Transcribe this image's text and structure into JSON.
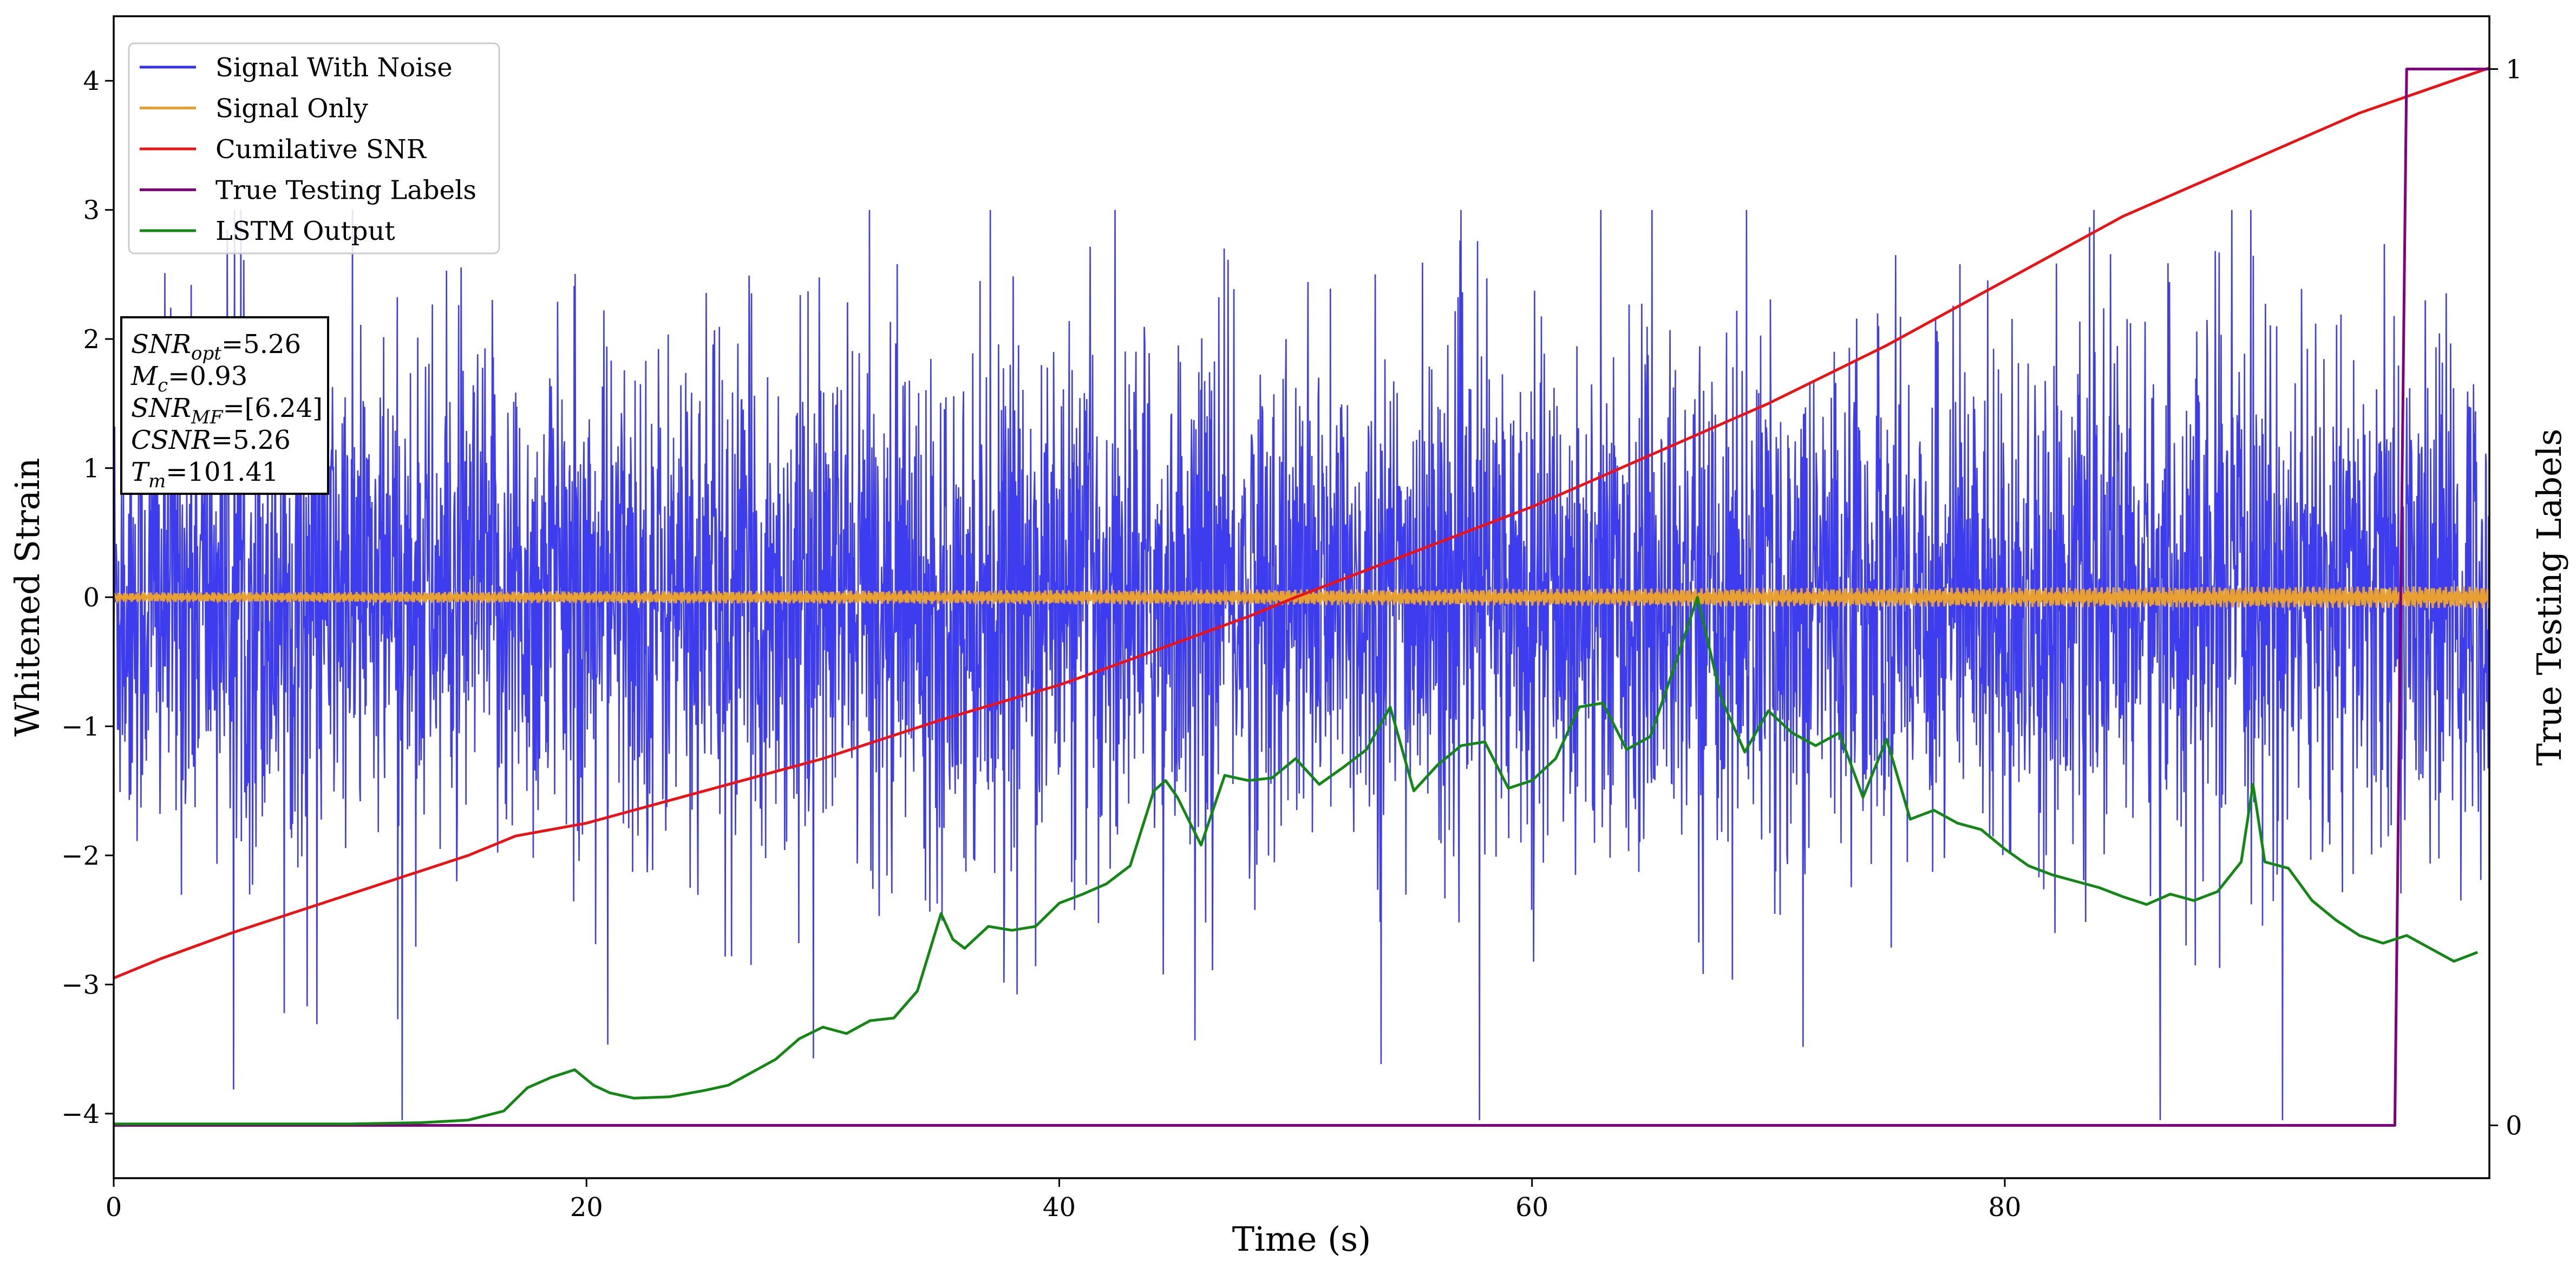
{
  "chart_data": {
    "type": "line",
    "xlabel": "Time (s)",
    "ylabel": "Whitened Strain",
    "y2label": "True Testing Labels",
    "xlim": [
      0,
      100.5
    ],
    "ylim": [
      -4.5,
      4.5
    ],
    "y2lim": [
      -0.05,
      1.05
    ],
    "xticks": [
      0,
      20,
      40,
      60,
      80
    ],
    "yticks": [
      -4,
      -3,
      -2,
      -1,
      0,
      1,
      2,
      3,
      4
    ],
    "y2ticks": [
      0,
      1
    ],
    "grid": false,
    "legend_position": "top-left",
    "colors": {
      "noise": "#3333ee",
      "signal": "#e8a030",
      "snr": "#ee1111",
      "labels": "#800080",
      "lstm": "#118811"
    },
    "legend": [
      {
        "label": "Signal With Noise",
        "series": "noise"
      },
      {
        "label": "Signal Only",
        "series": "signal"
      },
      {
        "label": "Cumilative SNR",
        "series": "snr"
      },
      {
        "label": "True Testing Labels",
        "series": "labels"
      },
      {
        "label": "LSTM Output",
        "series": "lstm"
      }
    ],
    "annotation": {
      "lines": [
        {
          "var": "SNR",
          "sub": "opt",
          "val": "=5.26"
        },
        {
          "var": "M",
          "sub": "c",
          "val": "=0.93"
        },
        {
          "var": "SNR",
          "sub": "MF",
          "val": "=[6.24]"
        },
        {
          "var": "CSNR",
          "sub": "",
          "val": "=5.26"
        },
        {
          "var": "T",
          "sub": "m",
          "val": "=101.41"
        }
      ]
    },
    "series": [
      {
        "key": "snr",
        "axis": "left",
        "x": [
          0,
          2,
          5,
          10,
          15,
          17,
          20,
          22,
          25,
          30,
          35,
          40,
          42,
          45,
          48,
          50,
          55,
          60,
          65,
          70,
          75,
          80,
          85,
          90,
          95,
          100.5
        ],
        "y": [
          -2.95,
          -2.8,
          -2.6,
          -2.3,
          -2.0,
          -1.85,
          -1.75,
          -1.65,
          -1.5,
          -1.25,
          -0.95,
          -0.68,
          -0.55,
          -0.35,
          -0.15,
          0.0,
          0.35,
          0.7,
          1.1,
          1.5,
          1.95,
          2.45,
          2.95,
          3.35,
          3.75,
          4.1
        ]
      },
      {
        "key": "labels",
        "axis": "right",
        "x": [
          0,
          96.5,
          97.0,
          100.5
        ],
        "y": [
          0,
          0,
          1,
          1
        ]
      },
      {
        "key": "lstm",
        "axis": "left",
        "x": [
          0,
          10,
          13,
          15,
          16.5,
          17.5,
          18.5,
          19.5,
          20.3,
          21,
          22,
          23.5,
          25,
          26,
          27,
          28,
          29,
          30,
          31,
          32,
          33,
          34,
          35,
          35.5,
          36,
          37,
          38,
          39,
          40,
          41,
          42,
          43,
          44,
          44.5,
          45,
          46,
          47,
          48,
          49,
          50,
          51,
          52,
          53,
          54,
          55,
          56,
          57,
          58,
          59,
          60,
          61,
          62,
          63,
          64,
          65,
          66,
          67,
          68,
          69,
          70,
          71,
          72,
          73,
          74,
          75,
          76,
          77,
          78,
          79,
          80,
          81,
          82,
          83,
          84,
          85,
          86,
          87,
          88,
          89,
          90,
          90.5,
          91,
          92,
          93,
          94,
          95,
          96,
          97,
          98,
          99,
          100
        ],
        "y": [
          -4.08,
          -4.08,
          -4.07,
          -4.05,
          -3.98,
          -3.8,
          -3.72,
          -3.66,
          -3.78,
          -3.84,
          -3.88,
          -3.87,
          -3.82,
          -3.78,
          -3.68,
          -3.58,
          -3.42,
          -3.33,
          -3.38,
          -3.28,
          -3.26,
          -3.05,
          -2.45,
          -2.65,
          -2.72,
          -2.55,
          -2.58,
          -2.55,
          -2.37,
          -2.3,
          -2.22,
          -2.08,
          -1.5,
          -1.42,
          -1.55,
          -1.92,
          -1.38,
          -1.42,
          -1.4,
          -1.25,
          -1.45,
          -1.32,
          -1.18,
          -0.85,
          -1.5,
          -1.3,
          -1.15,
          -1.12,
          -1.48,
          -1.42,
          -1.25,
          -0.85,
          -0.82,
          -1.18,
          -1.08,
          -0.55,
          0.0,
          -0.78,
          -1.2,
          -0.88,
          -1.05,
          -1.15,
          -1.05,
          -1.55,
          -1.1,
          -1.72,
          -1.65,
          -1.75,
          -1.8,
          -1.95,
          -2.08,
          -2.15,
          -2.2,
          -2.25,
          -2.32,
          -2.38,
          -2.3,
          -2.35,
          -2.28,
          -2.05,
          -1.45,
          -2.05,
          -2.1,
          -2.35,
          -2.5,
          -2.62,
          -2.68,
          -2.62,
          -2.72,
          -2.82,
          -2.75
        ]
      }
    ]
  }
}
